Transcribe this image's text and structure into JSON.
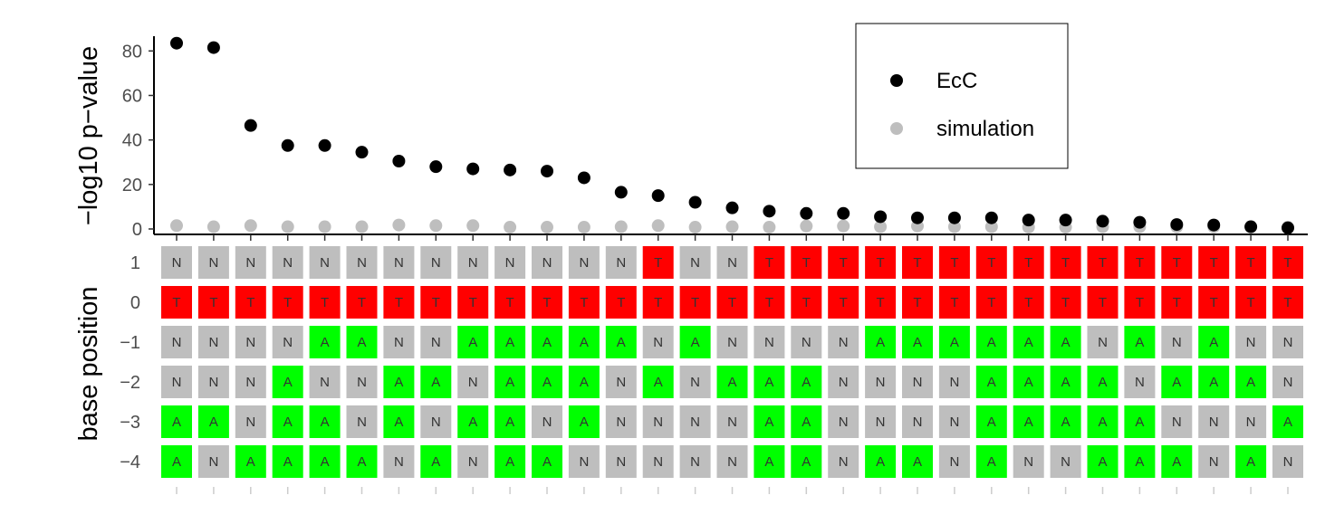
{
  "chart_data": [
    {
      "type": "scatter",
      "ylabel": "−log10 p−value",
      "ylim": [
        0,
        85
      ],
      "yticks": [
        0,
        20,
        40,
        60,
        80
      ],
      "grid": false,
      "legend_position": "top-right",
      "x": [
        1,
        2,
        3,
        4,
        5,
        6,
        7,
        8,
        9,
        10,
        11,
        12,
        13,
        14,
        15,
        16,
        17,
        18,
        19,
        20,
        21,
        22,
        23,
        24,
        25,
        26,
        27,
        28,
        29,
        30,
        31
      ],
      "series": [
        {
          "name": "EcC",
          "color": "#000000",
          "values": [
            83.5,
            81.5,
            46.5,
            37.5,
            37.5,
            34.5,
            30.5,
            28,
            27,
            26.5,
            26,
            23,
            16.5,
            15,
            12,
            9.5,
            8,
            7,
            7,
            5.5,
            5,
            5,
            5,
            4,
            4,
            3.5,
            3,
            2,
            1.8,
            1,
            0.5
          ]
        },
        {
          "name": "simulation",
          "color": "#bebebe",
          "values": [
            1.5,
            1,
            1.5,
            1,
            1,
            1,
            1.8,
            1.5,
            1.5,
            0.8,
            0.8,
            0.8,
            1,
            1.5,
            0.8,
            1,
            0.8,
            1.3,
            1.3,
            1,
            1.3,
            1,
            1,
            0.8,
            0.8,
            1,
            1,
            1,
            1,
            1,
            0.8
          ]
        }
      ]
    },
    {
      "type": "heatmap",
      "ylabel": "base position",
      "rows": [
        "1",
        "0",
        "−1",
        "−2",
        "−3",
        "−4"
      ],
      "colors": {
        "N": "#bebebe",
        "A": "#00ff00",
        "T": "#ff0000"
      },
      "cells": [
        "NNNNNNNNNNNNNTNNTTTTTTTTTTTTTTT",
        "TTTTTTTTTTTTTTTTTTTTTTTTTTTTTTT",
        "NNNNAANNAAAAANANNNNAAAAAANANANN",
        "NNNANNAANAAANANAAANNNNAAAANAAAN",
        "AANAANANAANANNNNAANNNNAAAAANNNA",
        "ANAAAANANAANNNNNAANAANANNAAANAN"
      ]
    }
  ]
}
